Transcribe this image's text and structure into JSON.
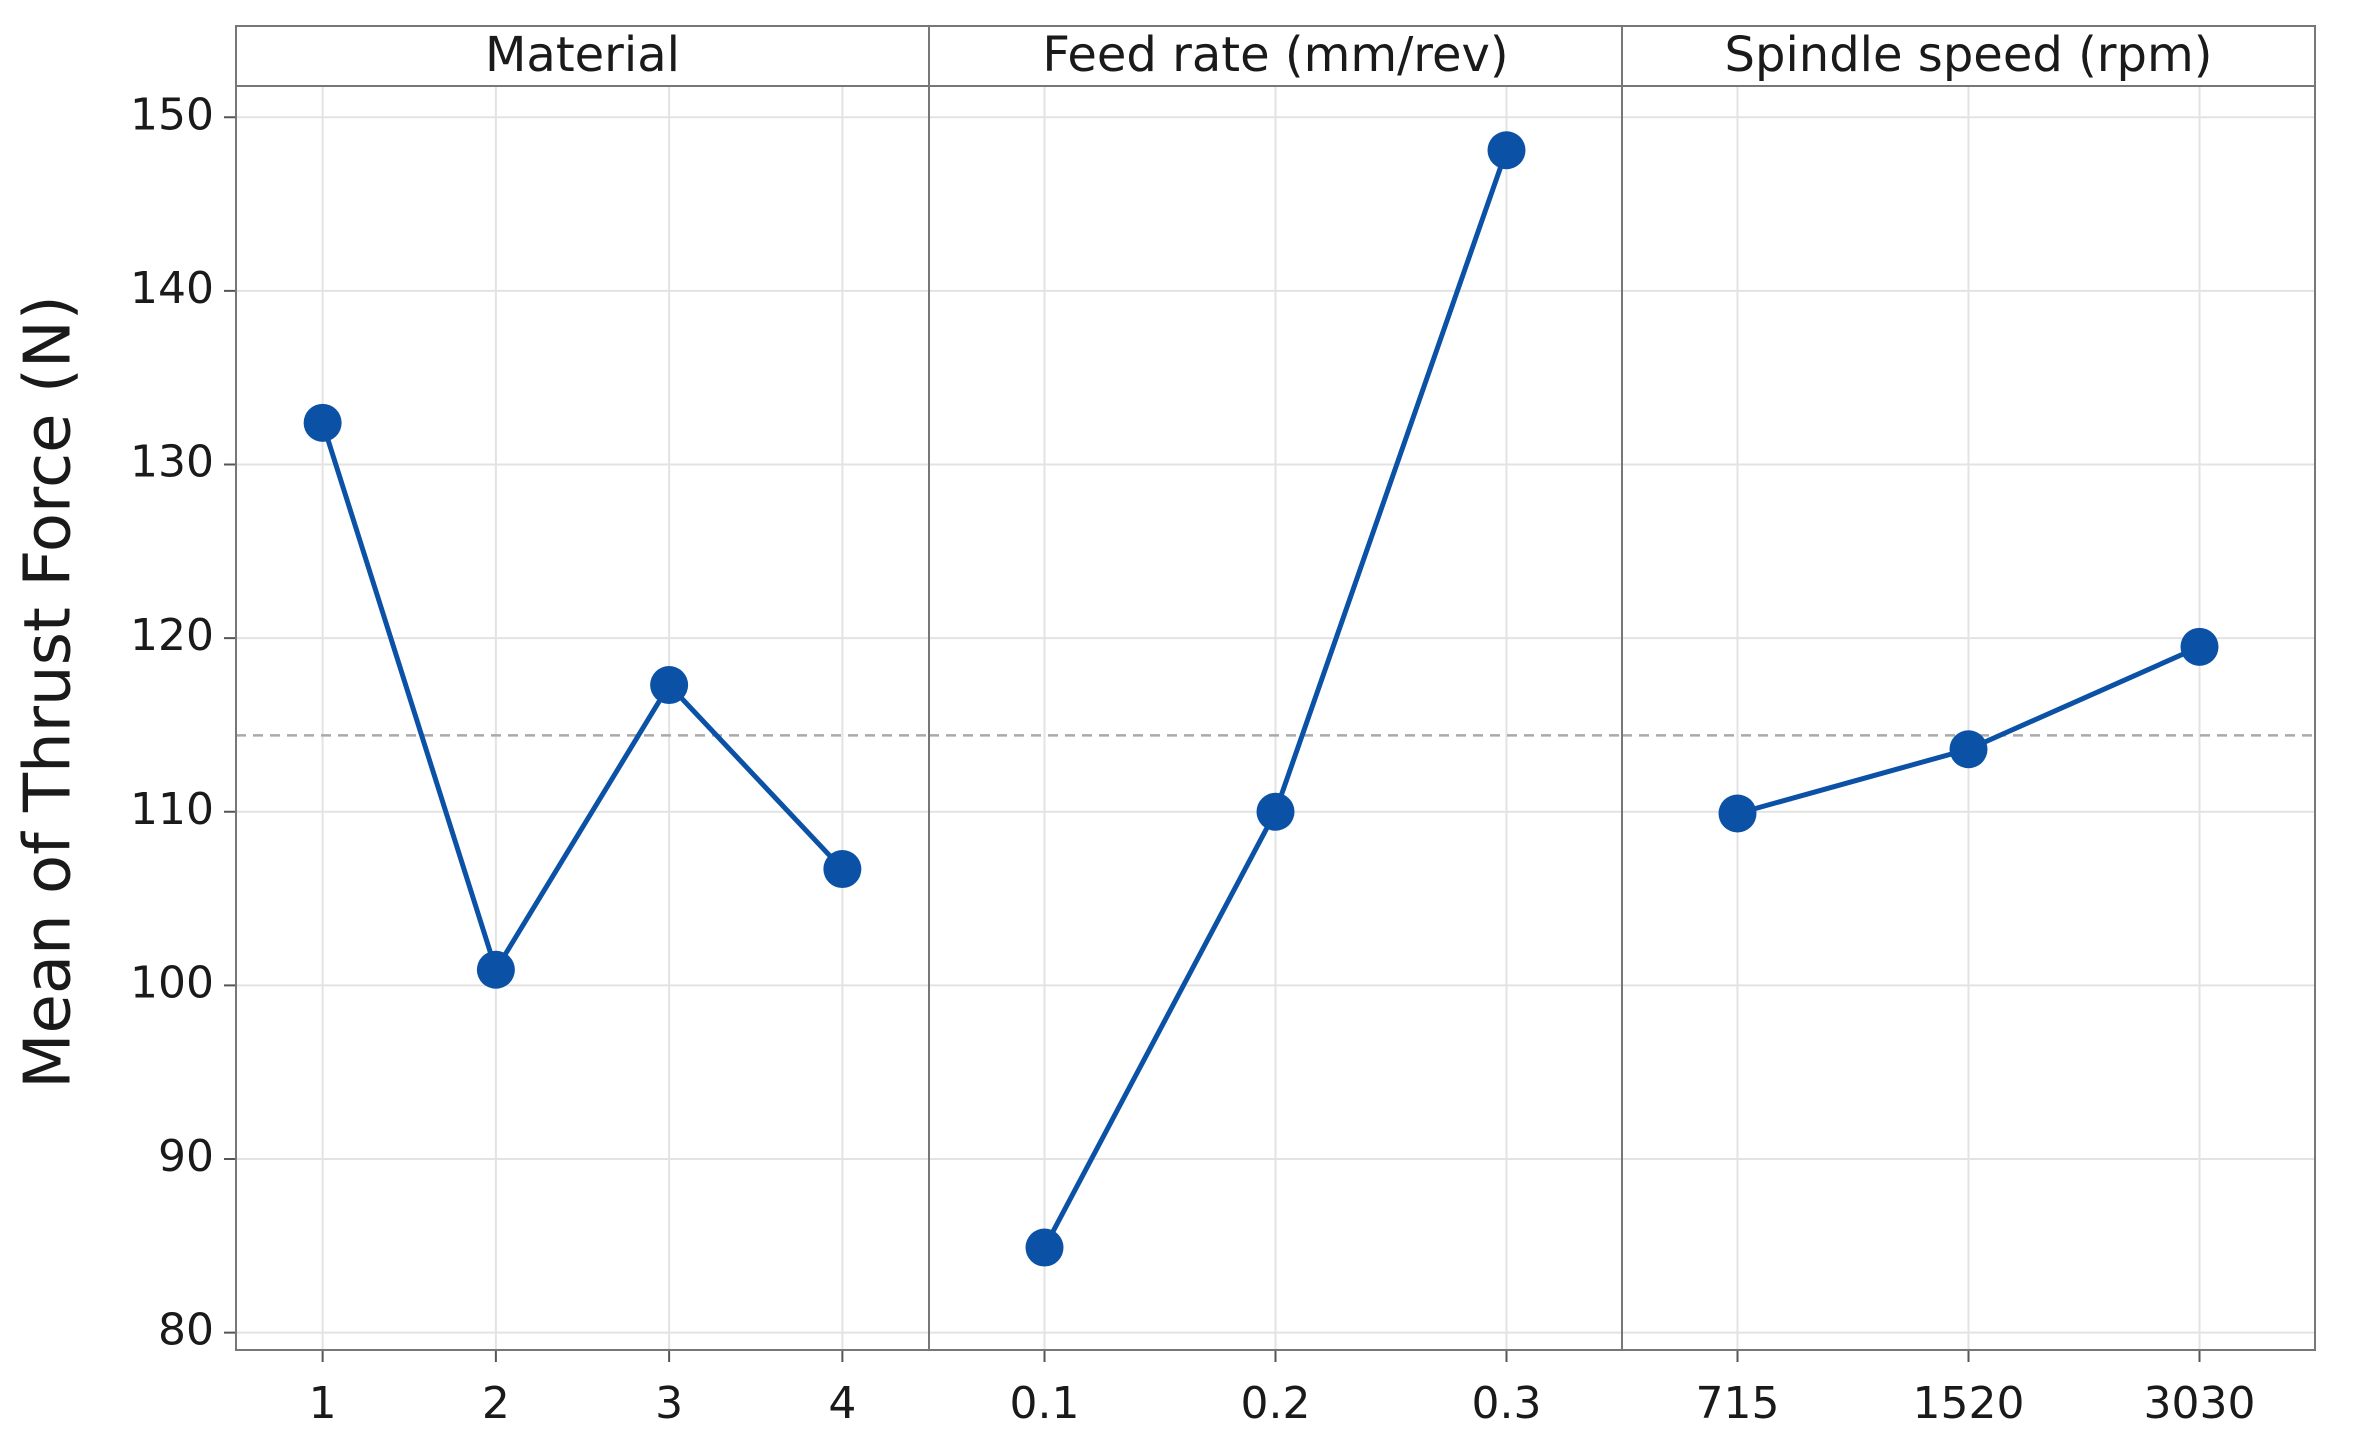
{
  "chart_data": {
    "type": "line",
    "ylabel": "Mean of Thrust Force (N)",
    "ylim": [
      79,
      151.8
    ],
    "yticks": [
      80,
      90,
      100,
      110,
      120,
      130,
      140,
      150
    ],
    "grid": true,
    "color": "#0b52a6",
    "reference_line": 114.4,
    "panels": [
      {
        "title": "Material",
        "categories": [
          "1",
          "2",
          "3",
          "4"
        ],
        "values": [
          132.4,
          100.9,
          117.3,
          106.7
        ]
      },
      {
        "title": "Feed rate (mm/rev)",
        "categories": [
          "0.1",
          "0.2",
          "0.3"
        ],
        "values": [
          84.9,
          110.0,
          148.1
        ]
      },
      {
        "title": "Spindle speed (rpm)",
        "categories": [
          "715",
          "1520",
          "3030"
        ],
        "values": [
          109.9,
          113.6,
          119.5
        ]
      }
    ]
  }
}
